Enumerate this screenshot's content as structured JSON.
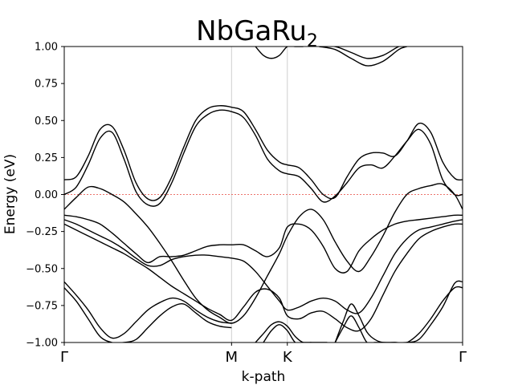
{
  "chart_data": {
    "type": "line",
    "title": "NbGaRu",
    "title_subscript": "2",
    "xlabel": "k-path",
    "ylabel": "Energy (eV)",
    "ylim": [
      -1.0,
      1.0
    ],
    "yticks": [
      "−1.00",
      "−0.75",
      "−0.50",
      "−0.25",
      "0.00",
      "0.25",
      "0.50",
      "0.75",
      "1.00"
    ],
    "yticks_values": [
      -1.0,
      -0.75,
      -0.5,
      -0.25,
      0.0,
      0.25,
      0.5,
      0.75,
      1.0
    ],
    "kpoints": [
      {
        "label": "Γ",
        "pos": 0.0
      },
      {
        "label": "M",
        "pos": 0.42
      },
      {
        "label": "K",
        "pos": 0.56
      },
      {
        "label": "Γ",
        "pos": 1.0
      }
    ],
    "fermi_level": 0.0,
    "fermi_line_color": "#e8453c",
    "band_color": "#000000",
    "vline_color": "#cfcfcf",
    "grid": false,
    "series": [
      {
        "x": [
          0,
          0.03,
          0.06,
          0.09,
          0.12,
          0.15,
          0.18,
          0.21,
          0.24,
          0.27,
          0.3,
          0.33,
          0.36,
          0.39,
          0.42,
          0.45,
          0.48,
          0.51,
          0.54,
          0.56,
          0.59,
          0.62,
          0.65,
          0.68,
          0.71,
          0.74,
          0.77,
          0.8,
          0.83,
          0.86,
          0.89,
          0.92,
          0.95,
          0.98,
          1.0
        ],
        "y": [
          0.1,
          0.12,
          0.26,
          0.44,
          0.46,
          0.3,
          0.08,
          -0.03,
          -0.02,
          0.12,
          0.32,
          0.5,
          0.58,
          0.6,
          0.59,
          0.56,
          0.44,
          0.3,
          0.22,
          0.2,
          0.18,
          0.1,
          0.0,
          -0.02,
          0.12,
          0.24,
          0.28,
          0.28,
          0.26,
          0.36,
          0.48,
          0.42,
          0.22,
          0.11,
          0.1
        ]
      },
      {
        "x": [
          0,
          0.03,
          0.06,
          0.09,
          0.12,
          0.15,
          0.18,
          0.21,
          0.24,
          0.27,
          0.3,
          0.33,
          0.36,
          0.39,
          0.42,
          0.45,
          0.48,
          0.51,
          0.54,
          0.56,
          0.59,
          0.62,
          0.65,
          0.68,
          0.71,
          0.74,
          0.77,
          0.8,
          0.83,
          0.86,
          0.89,
          0.92,
          0.95,
          0.98,
          1.0
        ],
        "y": [
          0.0,
          0.05,
          0.2,
          0.38,
          0.42,
          0.24,
          0.02,
          -0.07,
          -0.06,
          0.08,
          0.28,
          0.46,
          0.54,
          0.57,
          0.56,
          0.52,
          0.4,
          0.24,
          0.16,
          0.14,
          0.12,
          0.04,
          -0.05,
          -0.01,
          0.08,
          0.18,
          0.2,
          0.18,
          0.26,
          0.36,
          0.44,
          0.34,
          0.1,
          0.0,
          0.0
        ]
      },
      {
        "x": [
          0,
          0.03,
          0.06,
          0.09,
          0.12,
          0.15,
          0.18,
          0.21,
          0.24,
          0.27,
          0.3,
          0.33,
          0.36,
          0.39,
          0.42,
          0.45,
          0.48,
          0.51,
          0.54,
          0.56,
          0.59,
          0.62,
          0.65,
          0.68,
          0.71,
          0.74,
          0.77,
          0.8,
          0.83,
          0.86,
          0.89,
          0.92,
          0.95,
          0.98,
          1.0
        ],
        "y": [
          -0.1,
          -0.02,
          0.05,
          0.04,
          0.0,
          -0.05,
          -0.13,
          -0.22,
          -0.33,
          -0.45,
          -0.58,
          -0.7,
          -0.78,
          -0.83,
          -0.87,
          -0.82,
          -0.7,
          -0.55,
          -0.4,
          -0.28,
          -0.15,
          -0.1,
          -0.17,
          -0.32,
          -0.45,
          -0.52,
          -0.42,
          -0.28,
          -0.12,
          0.0,
          0.04,
          0.06,
          0.07,
          0.0,
          -0.1
        ]
      },
      {
        "x": [
          0,
          0.03,
          0.06,
          0.09,
          0.12,
          0.15,
          0.18,
          0.21,
          0.24,
          0.27,
          0.3,
          0.33,
          0.36,
          0.39,
          0.42,
          0.45,
          0.48,
          0.51,
          0.54,
          0.56,
          0.59,
          0.62,
          0.65,
          0.68,
          0.71,
          0.74,
          0.77,
          0.8,
          0.83,
          0.86,
          0.89,
          0.92,
          0.95,
          0.98,
          1.0
        ],
        "y": [
          -0.14,
          -0.15,
          -0.17,
          -0.2,
          -0.26,
          -0.33,
          -0.4,
          -0.46,
          -0.42,
          -0.42,
          -0.41,
          -0.38,
          -0.35,
          -0.34,
          -0.34,
          -0.34,
          -0.38,
          -0.42,
          -0.36,
          -0.22,
          -0.2,
          -0.24,
          -0.35,
          -0.5,
          -0.52,
          -0.38,
          -0.3,
          -0.24,
          -0.2,
          -0.18,
          -0.17,
          -0.16,
          -0.15,
          -0.14,
          -0.14
        ]
      },
      {
        "x": [
          0,
          0.03,
          0.06,
          0.09,
          0.12,
          0.15,
          0.18,
          0.21,
          0.24,
          0.27,
          0.3,
          0.33,
          0.36,
          0.39,
          0.42,
          0.45,
          0.48,
          0.51,
          0.54,
          0.56,
          0.59,
          0.62,
          0.65,
          0.68,
          0.71,
          0.74,
          0.77,
          0.8,
          0.83,
          0.86,
          0.89,
          0.92,
          0.95,
          0.98,
          1.0
        ],
        "y": [
          -0.17,
          -0.2,
          -0.24,
          -0.28,
          -0.32,
          -0.37,
          -0.43,
          -0.48,
          -0.48,
          -0.44,
          -0.42,
          -0.41,
          -0.41,
          -0.42,
          -0.43,
          -0.45,
          -0.52,
          -0.62,
          -0.72,
          -0.78,
          -0.76,
          -0.72,
          -0.7,
          -0.72,
          -0.78,
          -0.8,
          -0.7,
          -0.55,
          -0.4,
          -0.3,
          -0.24,
          -0.22,
          -0.2,
          -0.18,
          -0.17
        ]
      },
      {
        "x": [
          0,
          0.03,
          0.06,
          0.09,
          0.12,
          0.15,
          0.18,
          0.21,
          0.24,
          0.27,
          0.3,
          0.33,
          0.36,
          0.39,
          0.42,
          0.45,
          0.48,
          0.51,
          0.54,
          0.56,
          0.59,
          0.62,
          0.65,
          0.68,
          0.71,
          0.74,
          0.77,
          0.8,
          0.83,
          0.86,
          0.89,
          0.92,
          0.95,
          0.98,
          1.0
        ],
        "y": [
          -0.2,
          -0.24,
          -0.28,
          -0.32,
          -0.36,
          -0.4,
          -0.45,
          -0.5,
          -0.56,
          -0.62,
          -0.67,
          -0.72,
          -0.77,
          -0.81,
          -0.85,
          -0.76,
          -0.66,
          -0.64,
          -0.7,
          -0.82,
          -0.84,
          -0.8,
          -0.79,
          -0.84,
          -0.9,
          -0.92,
          -0.84,
          -0.68,
          -0.52,
          -0.4,
          -0.3,
          -0.25,
          -0.22,
          -0.2,
          -0.2
        ]
      },
      {
        "x": [
          0,
          0.03,
          0.06,
          0.09,
          0.12,
          0.15,
          0.18,
          0.21,
          0.24,
          0.27,
          0.3,
          0.33,
          0.36,
          0.39,
          0.42
        ],
        "y": [
          -0.59,
          -0.68,
          -0.78,
          -0.9,
          -0.97,
          -0.94,
          -0.86,
          -0.78,
          -0.73,
          -0.7,
          -0.72,
          -0.78,
          -0.83,
          -0.86,
          -0.87
        ]
      },
      {
        "x": [
          0,
          0.03,
          0.06,
          0.09,
          0.12,
          0.15,
          0.18,
          0.21,
          0.24,
          0.27,
          0.3,
          0.33,
          0.36,
          0.39,
          0.42
        ],
        "y": [
          -0.63,
          -0.72,
          -0.84,
          -0.96,
          -1.0,
          -1.0,
          -0.98,
          -0.9,
          -0.82,
          -0.76,
          -0.74,
          -0.8,
          -0.86,
          -0.89,
          -0.9
        ]
      },
      {
        "x": [
          0.68,
          0.7,
          0.72,
          0.74,
          0.76,
          0.78,
          0.8,
          0.83,
          0.86,
          0.89,
          0.92,
          0.95,
          0.98,
          1.0
        ],
        "y": [
          -1.0,
          -0.86,
          -0.74,
          -0.82,
          -0.93,
          -0.98,
          -1.0,
          -1.0,
          -1.0,
          -0.94,
          -0.84,
          -0.72,
          -0.63,
          -0.63
        ]
      },
      {
        "x": [
          0.68,
          0.7,
          0.72,
          0.74,
          0.76,
          0.78,
          0.8,
          0.83,
          0.86,
          0.89,
          0.92,
          0.95,
          0.98,
          1.0
        ],
        "y": [
          -1.0,
          -0.9,
          -0.82,
          -0.9,
          -1.0,
          -1.0,
          -1.0,
          -1.0,
          -1.0,
          -0.98,
          -0.88,
          -0.76,
          -0.6,
          -0.59
        ]
      },
      {
        "x": [
          0.48,
          0.5,
          0.52,
          0.54,
          0.56,
          0.58,
          0.6,
          0.62,
          0.64,
          0.66
        ],
        "y": [
          -1.0,
          -0.94,
          -0.88,
          -0.86,
          -0.89,
          -0.96,
          -1.0,
          -1.0,
          -1.0,
          -1.0
        ]
      },
      {
        "x": [
          0.5,
          0.52,
          0.54,
          0.56,
          0.58,
          0.6,
          0.62
        ],
        "y": [
          -1.0,
          -0.92,
          -0.88,
          -0.92,
          -1.0,
          -1.0,
          -1.0
        ]
      },
      {
        "x": [
          0.48,
          0.5,
          0.52,
          0.54,
          0.56,
          0.58,
          0.6
        ],
        "y": [
          1.0,
          0.94,
          0.92,
          0.94,
          1.0,
          1.0,
          1.0
        ]
      },
      {
        "x": [
          0.64,
          0.68,
          0.72,
          0.76,
          0.8,
          0.84,
          0.86
        ],
        "y": [
          1.0,
          1.0,
          0.96,
          0.92,
          0.94,
          1.0,
          1.0
        ]
      },
      {
        "x": [
          0.64,
          0.68,
          0.72,
          0.76,
          0.8,
          0.84,
          0.86
        ],
        "y": [
          1.0,
          0.98,
          0.92,
          0.87,
          0.9,
          0.98,
          1.0
        ]
      }
    ]
  }
}
